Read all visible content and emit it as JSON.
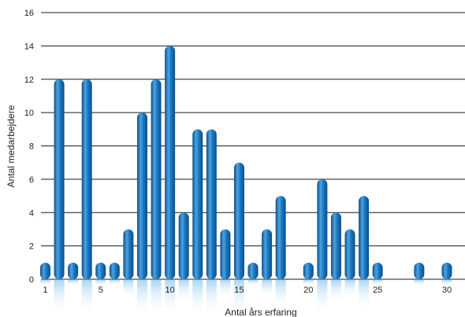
{
  "chart_data": {
    "type": "bar",
    "title": "",
    "xlabel": "Antal års erfaring",
    "ylabel": "Antal medarbejdere",
    "x": [
      1,
      2,
      3,
      4,
      5,
      6,
      7,
      8,
      9,
      10,
      11,
      12,
      13,
      14,
      15,
      16,
      17,
      18,
      19,
      20,
      21,
      22,
      23,
      24,
      25,
      26,
      27,
      28,
      29,
      30
    ],
    "values": [
      1,
      12,
      1,
      12,
      1,
      1,
      3,
      10,
      12,
      14,
      4,
      9,
      9,
      3,
      7,
      1,
      3,
      5,
      0,
      1,
      6,
      4,
      3,
      5,
      1,
      0,
      0,
      1,
      0,
      1
    ],
    "xlim": [
      1,
      30
    ],
    "ylim": [
      0,
      16
    ],
    "x_ticks": [
      "1",
      "5",
      "10",
      "15",
      "20",
      "25",
      "30"
    ],
    "x_tick_values": [
      1,
      5,
      10,
      15,
      20,
      25,
      30
    ],
    "y_ticks": [
      "0",
      "2",
      "4",
      "6",
      "8",
      "10",
      "12",
      "14",
      "16"
    ],
    "y_tick_values": [
      0,
      2,
      4,
      6,
      8,
      10,
      12,
      14,
      16
    ],
    "grid": true,
    "legend": "none",
    "colors": {
      "bar": "#1470b8",
      "bar_highlight": "#4fa3e0",
      "bar_dark": "#0b4f8a",
      "grid": "#1a1a1a",
      "reflection": "#9fd0f0"
    }
  }
}
